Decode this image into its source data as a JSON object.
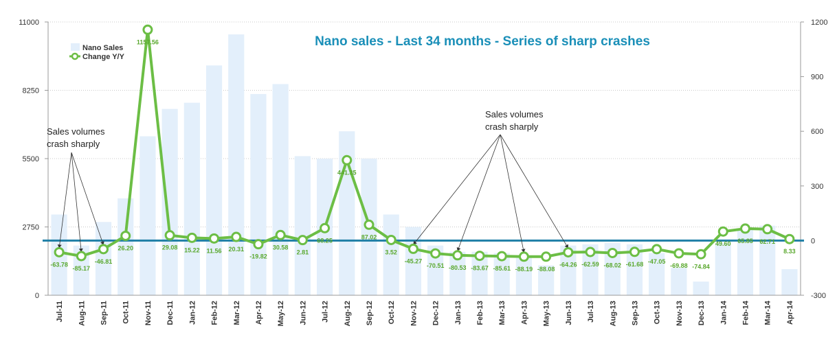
{
  "chart_data": {
    "type": "bar+line",
    "title": "Nano sales - Last 34 months - Series of sharp crashes",
    "categories": [
      "Jul-11",
      "Aug-11",
      "Sep-11",
      "Oct-11",
      "Nov-11",
      "Dec-11",
      "Jan-12",
      "Feb-12",
      "Mar-12",
      "Apr-12",
      "May-12",
      "Jun-12",
      "Jul-12",
      "Aug-12",
      "Sep-12",
      "Oct-12",
      "Nov-12",
      "Dec-12",
      "Jan-13",
      "Feb-13",
      "Mar-13",
      "Apr-13",
      "May-13",
      "Jun-13",
      "Jul-13",
      "Aug-13",
      "Sep-13",
      "Oct-13",
      "Nov-13",
      "Dec-13",
      "Jan-14",
      "Feb-14",
      "Mar-14",
      "Apr-14"
    ],
    "series": [
      {
        "name": "Nano Sales",
        "axis": "left",
        "type": "bar",
        "color": "#e3effb",
        "values": [
          3250,
          2000,
          2950,
          3900,
          6400,
          7500,
          7750,
          9250,
          10500,
          8100,
          8500,
          5600,
          5500,
          6600,
          5500,
          3250,
          2750,
          2000,
          1750,
          1750,
          1700,
          1500,
          1200,
          2000,
          2050,
          2100,
          2050,
          1700,
          1100,
          550,
          2100,
          2650,
          2800,
          1050
        ]
      },
      {
        "name": "Change Y/Y",
        "axis": "right",
        "type": "line",
        "color": "#6cbe45",
        "values": [
          -63.78,
          -85.17,
          -46.81,
          26.2,
          1157.56,
          29.08,
          15.22,
          11.56,
          20.31,
          -19.82,
          30.58,
          2.81,
          68.25,
          441.35,
          87.02,
          3.52,
          -45.27,
          -70.51,
          -80.53,
          -83.67,
          -85.61,
          -88.19,
          -88.08,
          -64.26,
          -62.59,
          -68.02,
          -61.68,
          -47.05,
          -69.88,
          -74.84,
          49.6,
          65.85,
          62.71,
          8.33
        ],
        "labels": [
          "-63.78",
          "-85.17",
          "-46.81",
          "26.20",
          "1157.56",
          "29.08",
          "15.22",
          "11.56",
          "20.31",
          "-19.82",
          "30.58",
          "2.81",
          "68.25",
          "441.35",
          "87.02",
          "3.52",
          "-45.27",
          "-70.51",
          "-80.53",
          "-83.67",
          "-85.61",
          "-88.19",
          "-88.08",
          "-64.26",
          "-62.59",
          "-68.02",
          "-61.68",
          "-47.05",
          "-69.88",
          "-74.84",
          "49.60",
          "65.85",
          "62.71",
          "8.33"
        ]
      }
    ],
    "y_left": {
      "min": 0,
      "max": 11000,
      "ticks": [
        "0",
        "2750",
        "5500",
        "8250",
        "11000"
      ]
    },
    "y_right": {
      "min": -300,
      "max": 1200,
      "ticks": [
        "-300",
        "0",
        "300",
        "600",
        "900",
        "1200"
      ]
    },
    "zero_line_color": "#1f7fa6",
    "grid": true,
    "legend": {
      "position": "top-left",
      "items": [
        "Nano Sales",
        "Change Y/Y"
      ]
    },
    "annotations": [
      {
        "lines": [
          "Sales volumes",
          "crash sharply"
        ],
        "targets": [
          "Jul-11",
          "Aug-11",
          "Sep-11"
        ]
      },
      {
        "lines": [
          "Sales volumes",
          "crash sharply"
        ],
        "targets": [
          "Nov-12",
          "Jan-13",
          "Apr-13",
          "Jun-13"
        ]
      }
    ]
  }
}
